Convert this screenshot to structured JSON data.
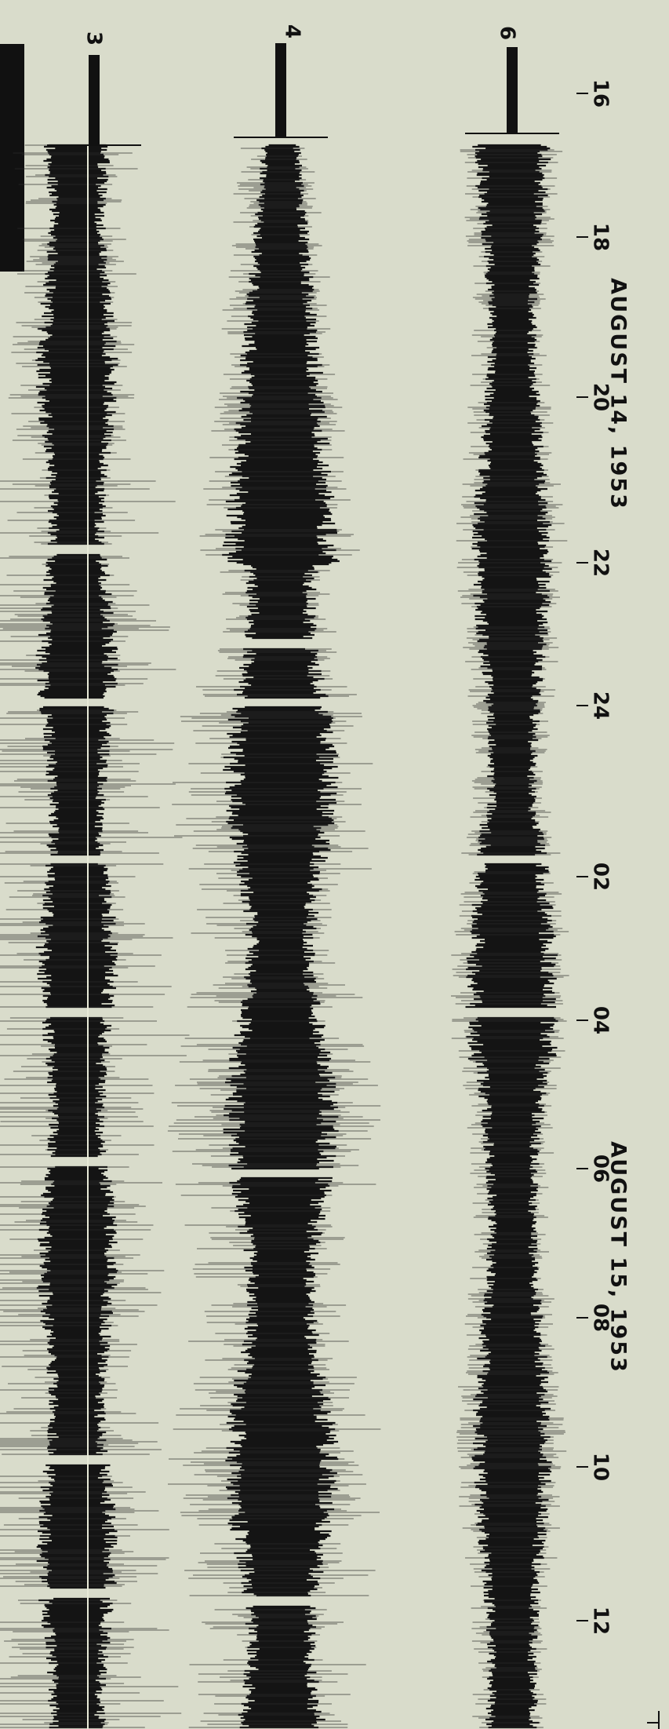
{
  "channels": [
    "3",
    "4",
    "6"
  ],
  "time_ticks": [
    "16",
    "18",
    "20",
    "22",
    "24",
    "02",
    "04",
    "06",
    "08",
    "10",
    "12"
  ],
  "dates": [
    "AUGUST 14, 1953",
    "AUGUST 15, 1953"
  ]
}
